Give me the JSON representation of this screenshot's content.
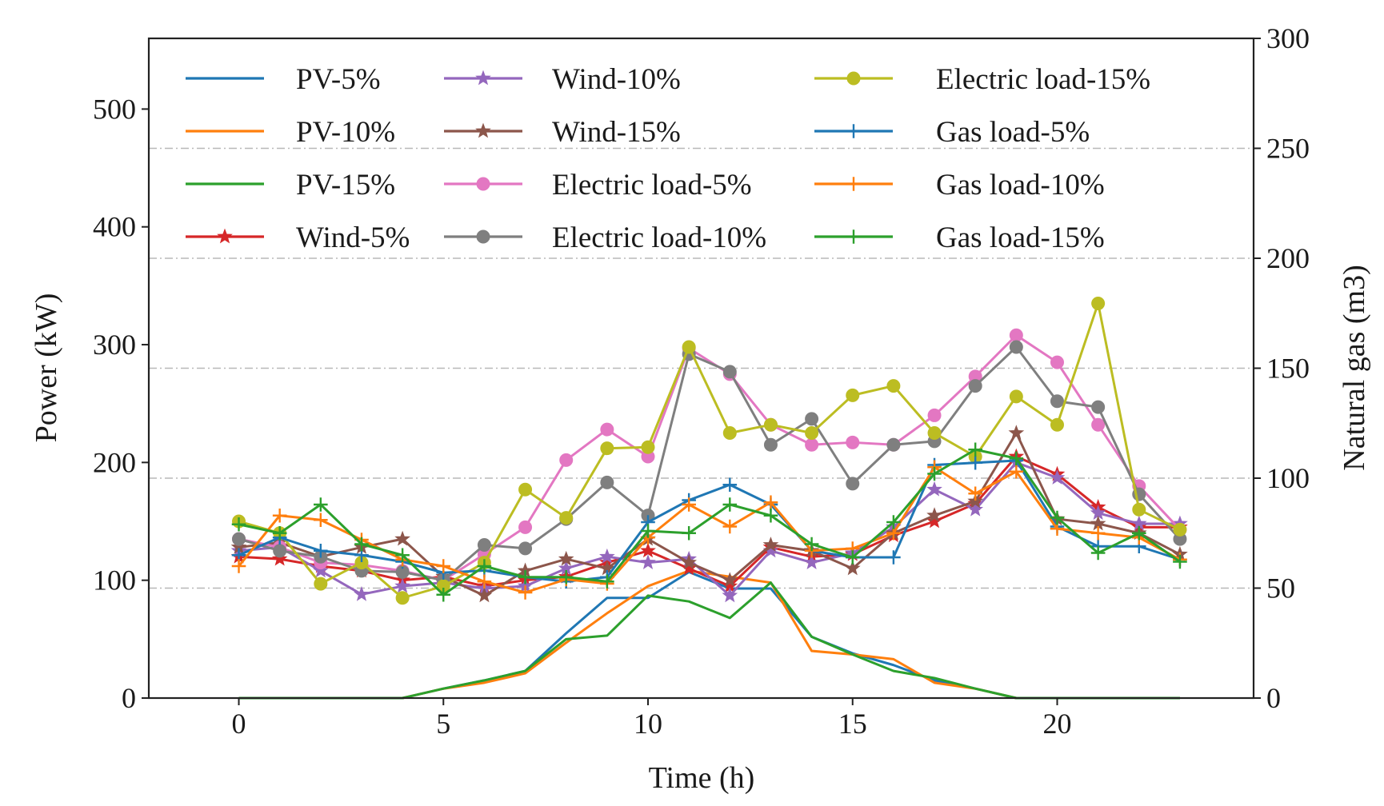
{
  "chart_data": {
    "type": "line",
    "title": "",
    "xlabel": "Time (h)",
    "ylabel": "Power (kW)",
    "y2label": "Natural gas (m3)",
    "xlim": [
      -2.2,
      24.8
    ],
    "ylim": [
      0,
      560
    ],
    "y2lim": [
      0,
      300
    ],
    "xticks": [
      0,
      5,
      10,
      15,
      20
    ],
    "yticks": [
      0,
      100,
      200,
      300,
      400,
      500
    ],
    "y2ticks": [
      0,
      50,
      100,
      150,
      200,
      250,
      300
    ],
    "grid": "horizontal dash-dot",
    "legend_position": "top-left",
    "x": [
      0,
      1,
      2,
      3,
      4,
      5,
      6,
      7,
      8,
      9,
      10,
      11,
      12,
      13,
      14,
      15,
      16,
      17,
      18,
      19,
      20,
      21,
      22,
      23
    ],
    "series": [
      {
        "name": "PV-5%",
        "axis": "left",
        "color": "#1f77b4",
        "marker": "none",
        "values": [
          0,
          0,
          0,
          0,
          0,
          8,
          15,
          23,
          55,
          85,
          85,
          107,
          93,
          93,
          52,
          38,
          28,
          15,
          8,
          0,
          0,
          0,
          0,
          0
        ]
      },
      {
        "name": "PV-10%",
        "axis": "left",
        "color": "#ff7f0e",
        "marker": "none",
        "values": [
          0,
          0,
          0,
          0,
          0,
          8,
          13,
          21,
          47,
          72,
          95,
          108,
          103,
          98,
          40,
          37,
          33,
          13,
          8,
          0,
          0,
          0,
          0,
          0
        ]
      },
      {
        "name": "PV-15%",
        "axis": "left",
        "color": "#2ca02c",
        "marker": "none",
        "values": [
          0,
          0,
          0,
          0,
          0,
          8,
          15,
          23,
          50,
          53,
          87,
          82,
          68,
          98,
          52,
          37,
          23,
          17,
          8,
          0,
          0,
          0,
          0,
          0
        ]
      },
      {
        "name": "Wind-5%",
        "axis": "left",
        "color": "#d62728",
        "marker": "star",
        "values": [
          120,
          118,
          112,
          108,
          100,
          103,
          95,
          100,
          103,
          115,
          125,
          110,
          95,
          128,
          120,
          122,
          138,
          150,
          165,
          205,
          190,
          162,
          145,
          145
        ]
      },
      {
        "name": "Wind-10%",
        "axis": "left",
        "color": "#9467bd",
        "marker": "star",
        "values": [
          125,
          128,
          108,
          88,
          95,
          98,
          93,
          95,
          110,
          120,
          115,
          118,
          87,
          125,
          115,
          123,
          145,
          177,
          160,
          200,
          187,
          157,
          148,
          148
        ]
      },
      {
        "name": "Wind-15%",
        "axis": "left",
        "color": "#8c564b",
        "marker": "star",
        "values": [
          128,
          132,
          120,
          128,
          135,
          103,
          87,
          108,
          118,
          110,
          135,
          115,
          100,
          130,
          125,
          110,
          140,
          155,
          167,
          225,
          152,
          148,
          140,
          122
        ]
      },
      {
        "name": "Electric load-5%",
        "axis": "left",
        "color": "#e377c2",
        "marker": "circle",
        "values": [
          135,
          128,
          115,
          113,
          108,
          100,
          122,
          145,
          202,
          228,
          205,
          297,
          275,
          232,
          215,
          217,
          215,
          240,
          273,
          308,
          285,
          232,
          180,
          143
        ]
      },
      {
        "name": "Electric load-10%",
        "axis": "left",
        "color": "#7f7f7f",
        "marker": "circle",
        "values": [
          135,
          125,
          120,
          108,
          107,
          100,
          130,
          127,
          152,
          183,
          155,
          292,
          277,
          215,
          237,
          182,
          215,
          218,
          265,
          298,
          252,
          247,
          173,
          135
        ]
      },
      {
        "name": "Electric load-15%",
        "axis": "left",
        "color": "#bcbd22",
        "marker": "circle",
        "values": [
          150,
          140,
          97,
          115,
          85,
          95,
          115,
          177,
          153,
          212,
          213,
          298,
          225,
          232,
          225,
          257,
          265,
          225,
          205,
          256,
          232,
          335,
          160,
          143
        ]
      },
      {
        "name": "Gas load-5%",
        "axis": "right",
        "color": "#1f77b4",
        "marker": "plus",
        "values": [
          65,
          73,
          67,
          65,
          62,
          57,
          58,
          55,
          53,
          55,
          80,
          90,
          97,
          88,
          67,
          64,
          64,
          106,
          107,
          108,
          78,
          69,
          69,
          63
        ]
      },
      {
        "name": "Gas load-10%",
        "axis": "right",
        "color": "#ff7f0e",
        "marker": "plus",
        "values": [
          60,
          83,
          81,
          72,
          63,
          60,
          53,
          48,
          54,
          52,
          73,
          88,
          78,
          89,
          67,
          68,
          75,
          105,
          93,
          103,
          77,
          75,
          73,
          63
        ]
      },
      {
        "name": "Gas load-15%",
        "axis": "right",
        "color": "#2ca02c",
        "marker": "plus",
        "values": [
          79,
          75,
          88,
          70,
          65,
          47,
          60,
          55,
          55,
          53,
          76,
          75,
          88,
          83,
          70,
          64,
          80,
          102,
          113,
          109,
          82,
          66,
          75,
          62
        ]
      }
    ]
  }
}
